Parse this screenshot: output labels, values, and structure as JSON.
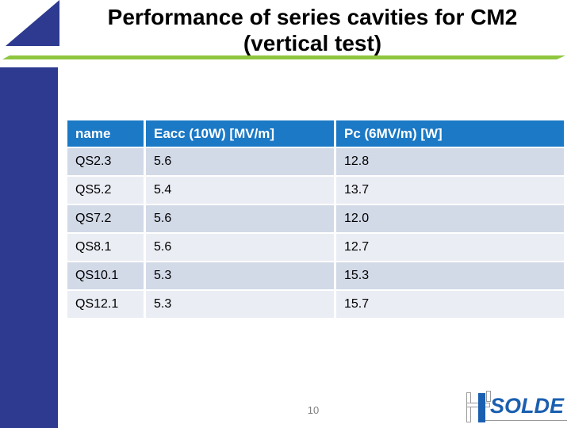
{
  "slide": {
    "title_line1": "Performance of series cavities for CM2",
    "title_line2": "(vertical test)",
    "page_number": "10"
  },
  "table": {
    "columns": [
      "name",
      "Eacc (10W) [MV/m]",
      "Pc (6MV/m) [W]"
    ],
    "rows": [
      [
        "QS2.3",
        "5.6",
        "12.8"
      ],
      [
        "QS5.2",
        "5.4",
        "13.7"
      ],
      [
        "QS7.2",
        "5.6",
        "12.0"
      ],
      [
        "QS8.1",
        "5.6",
        "12.7"
      ],
      [
        "QS10.1",
        "5.3",
        "15.3"
      ],
      [
        "QS12.1",
        "5.3",
        "15.7"
      ]
    ]
  },
  "logo": {
    "text": "SOLDE"
  },
  "colors": {
    "navy": "#2D3A8F",
    "green_rule": "#8FC63F",
    "table_header_blue": "#1B79C6",
    "row_dark": "#D2D9E7",
    "row_light": "#EAEDF4",
    "logo_blue": "#1A5FB0",
    "page_number_gray": "#808080"
  }
}
